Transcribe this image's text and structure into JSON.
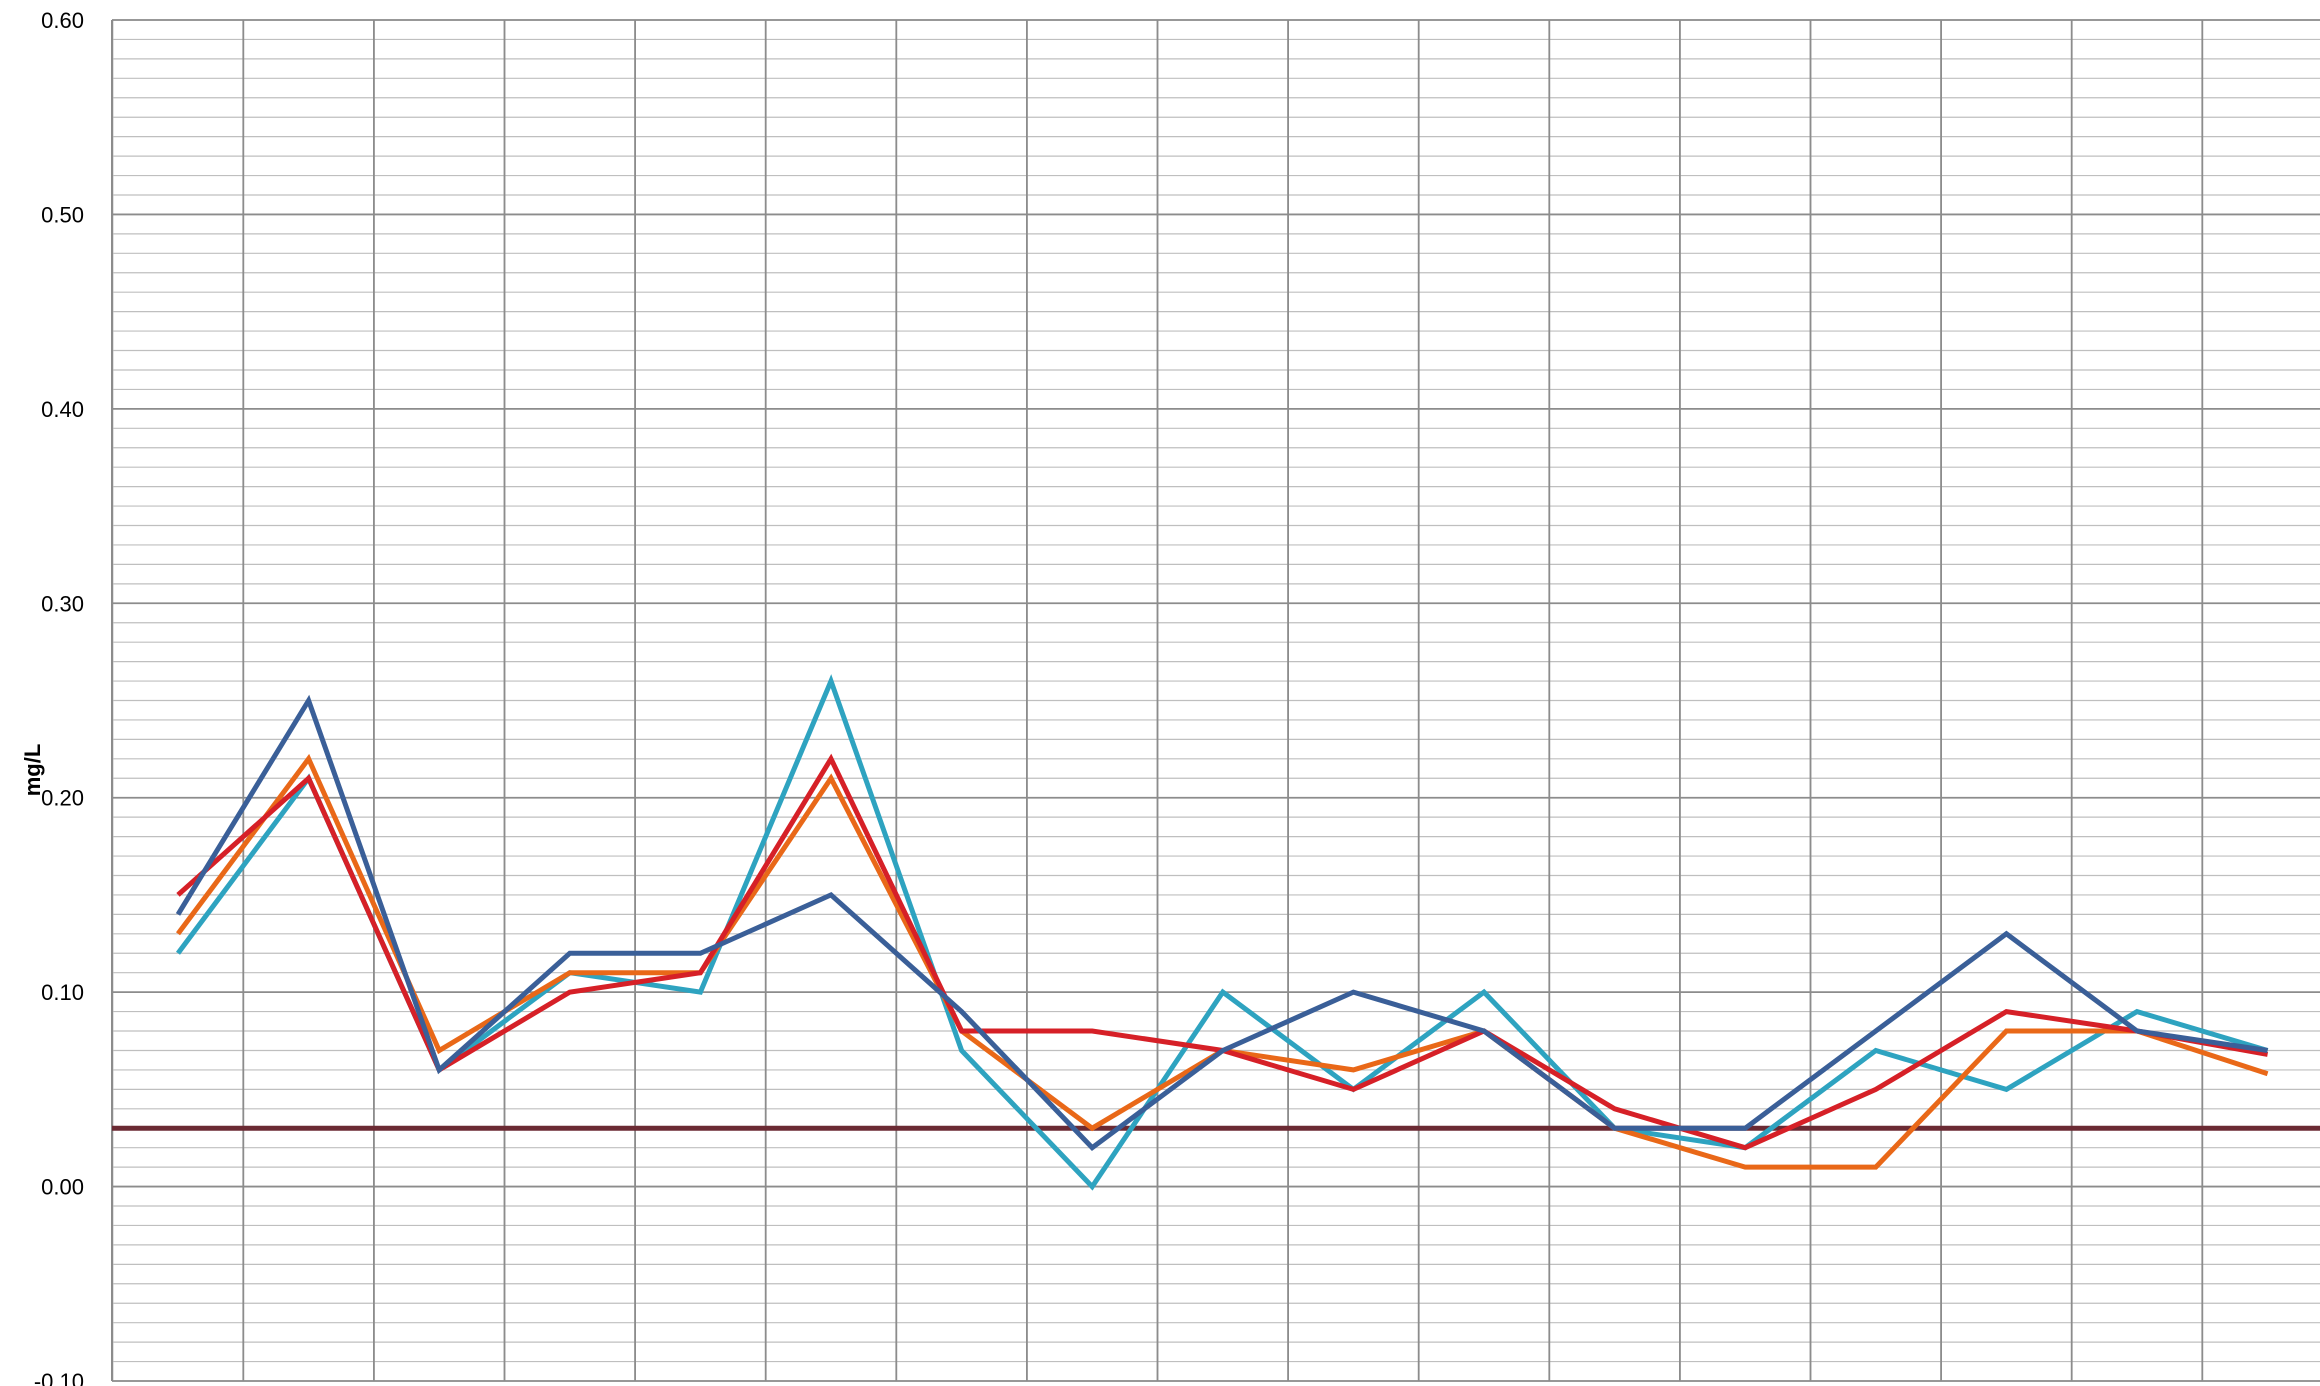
{
  "chart_data": {
    "type": "line",
    "ylabel": "mg/L",
    "ylim": [
      -0.1,
      0.6
    ],
    "y_ticks": [
      "0.60",
      "0.50",
      "0.40",
      "0.30",
      "0.20",
      "0.10",
      "0.00",
      "-0.10"
    ],
    "y_tick_values": [
      0.6,
      0.5,
      0.4,
      0.3,
      0.2,
      0.1,
      0.0,
      -0.1
    ],
    "y_minor_step": 0.01,
    "x_major_count": 17,
    "grid": true,
    "legend": "none",
    "colors": {
      "grid_major": "#8c8c8c",
      "grid_minor": "#bfbfbf",
      "reference": "#6b2a33"
    },
    "reference_line": 0.03,
    "x": [
      1,
      2,
      3,
      4,
      5,
      6,
      7,
      8,
      9,
      10,
      11,
      12,
      13,
      14,
      15,
      16,
      17
    ],
    "series": [
      {
        "color": "#2ea3c0",
        "values": [
          0.12,
          0.21,
          0.06,
          0.11,
          0.1,
          0.26,
          0.07,
          0.0,
          0.1,
          0.05,
          0.1,
          0.03,
          0.02,
          0.07,
          0.05,
          0.09,
          0.07
        ]
      },
      {
        "color": "#e96818",
        "values": [
          0.13,
          0.22,
          0.07,
          0.11,
          0.11,
          0.21,
          0.08,
          0.03,
          0.07,
          0.06,
          0.08,
          0.03,
          0.01,
          0.01,
          0.08,
          0.08,
          0.058
        ]
      },
      {
        "color": "#d62027",
        "values": [
          0.15,
          0.21,
          0.06,
          0.1,
          0.11,
          0.22,
          0.08,
          0.08,
          0.07,
          0.05,
          0.08,
          0.04,
          0.02,
          0.05,
          0.09,
          0.08,
          0.068
        ]
      },
      {
        "color": "#3a5f98",
        "values": [
          0.14,
          0.25,
          0.06,
          0.12,
          0.12,
          0.15,
          0.09,
          0.02,
          0.07,
          0.1,
          0.08,
          0.03,
          0.03,
          0.08,
          0.13,
          0.08,
          0.07
        ]
      }
    ]
  }
}
